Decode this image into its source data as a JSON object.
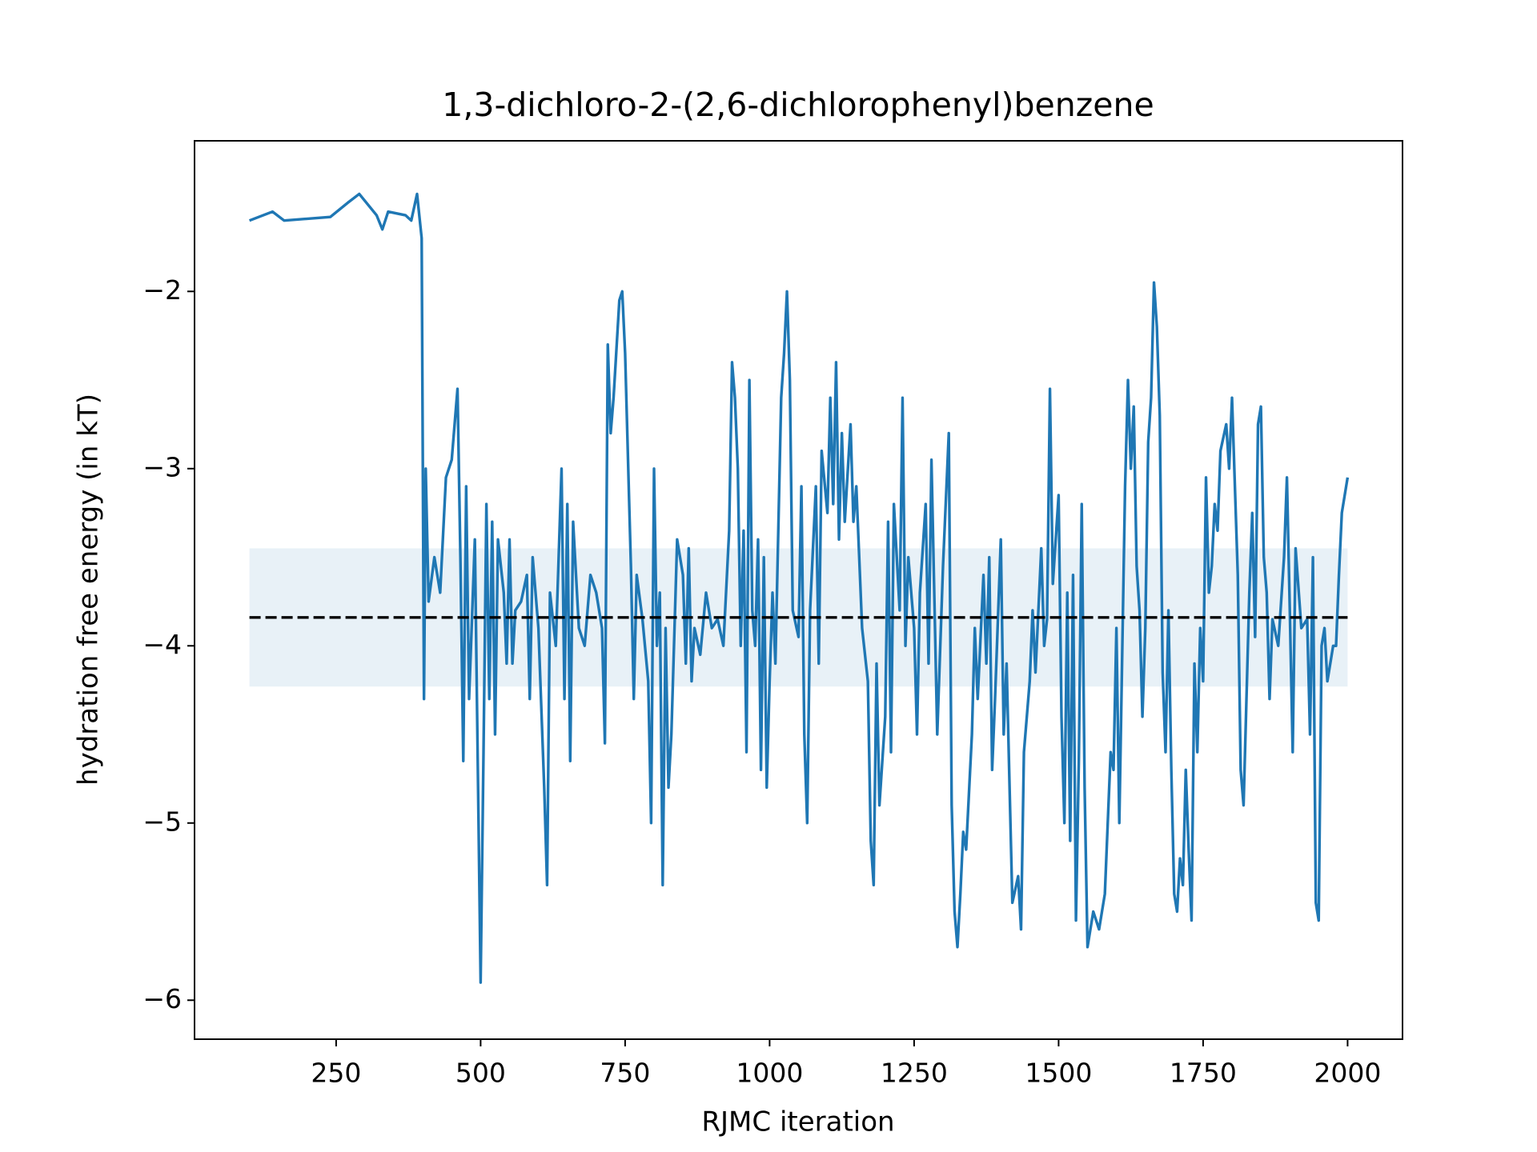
{
  "chart_data": {
    "type": "line",
    "title": "1,3-dichloro-2-(2,6-dichlorophenyl)benzene",
    "xlabel": "RJMC iteration",
    "ylabel": "hydration free energy (in kT)",
    "xlim": [
      5,
      2095
    ],
    "ylim": [
      -6.22,
      -1.15
    ],
    "xticks": [
      250,
      500,
      750,
      1000,
      1250,
      1500,
      1750,
      2000
    ],
    "yticks": [
      {
        "value": -6,
        "label": "−6"
      },
      {
        "value": -5,
        "label": "−5"
      },
      {
        "value": -4,
        "label": "−4"
      },
      {
        "value": -3,
        "label": "−3"
      },
      {
        "value": -2,
        "label": "−2"
      }
    ],
    "reference_line": {
      "value": -3.84,
      "color": "#000000"
    },
    "band": {
      "low": -4.23,
      "high": -3.45,
      "color": "#1f77b4"
    },
    "x": [
      100,
      140,
      160,
      240,
      270,
      290,
      320,
      330,
      340,
      370,
      380,
      390,
      398,
      402,
      405,
      410,
      420,
      430,
      440,
      450,
      460,
      465,
      470,
      475,
      480,
      490,
      500,
      505,
      510,
      515,
      520,
      525,
      530,
      540,
      545,
      550,
      555,
      560,
      570,
      580,
      585,
      590,
      600,
      610,
      615,
      620,
      630,
      640,
      645,
      650,
      655,
      660,
      670,
      680,
      690,
      700,
      710,
      715,
      720,
      725,
      730,
      740,
      745,
      750,
      760,
      765,
      770,
      780,
      790,
      795,
      800,
      805,
      810,
      815,
      820,
      825,
      830,
      840,
      850,
      855,
      860,
      865,
      870,
      880,
      890,
      900,
      910,
      920,
      930,
      935,
      940,
      945,
      950,
      955,
      960,
      965,
      970,
      975,
      980,
      985,
      990,
      995,
      1000,
      1005,
      1010,
      1020,
      1025,
      1030,
      1035,
      1040,
      1050,
      1055,
      1060,
      1065,
      1070,
      1080,
      1085,
      1090,
      1100,
      1105,
      1110,
      1115,
      1120,
      1125,
      1130,
      1140,
      1145,
      1150,
      1160,
      1170,
      1175,
      1180,
      1185,
      1190,
      1200,
      1205,
      1210,
      1215,
      1225,
      1230,
      1235,
      1240,
      1250,
      1255,
      1260,
      1270,
      1275,
      1280,
      1290,
      1300,
      1310,
      1315,
      1320,
      1325,
      1330,
      1335,
      1340,
      1350,
      1355,
      1360,
      1370,
      1375,
      1380,
      1385,
      1390,
      1400,
      1405,
      1410,
      1420,
      1430,
      1435,
      1440,
      1450,
      1455,
      1460,
      1470,
      1475,
      1480,
      1485,
      1490,
      1500,
      1505,
      1510,
      1515,
      1520,
      1525,
      1530,
      1535,
      1540,
      1545,
      1550,
      1560,
      1570,
      1575,
      1580,
      1590,
      1595,
      1600,
      1605,
      1610,
      1615,
      1620,
      1625,
      1630,
      1635,
      1640,
      1645,
      1650,
      1655,
      1660,
      1665,
      1670,
      1675,
      1680,
      1685,
      1690,
      1695,
      1700,
      1705,
      1710,
      1715,
      1720,
      1725,
      1730,
      1735,
      1740,
      1745,
      1750,
      1755,
      1760,
      1765,
      1770,
      1775,
      1780,
      1790,
      1795,
      1800,
      1810,
      1815,
      1820,
      1830,
      1835,
      1840,
      1845,
      1850,
      1855,
      1860,
      1865,
      1870,
      1880,
      1890,
      1895,
      1900,
      1905,
      1910,
      1920,
      1930,
      1935,
      1940,
      1945,
      1950,
      1955,
      1960,
      1965,
      1970,
      1975,
      1980,
      1985,
      1990,
      2000
    ],
    "series": [
      {
        "color": "#1f77b4",
        "values": [
          -1.6,
          -1.55,
          -1.6,
          -1.58,
          -1.5,
          -1.45,
          -1.57,
          -1.65,
          -1.55,
          -1.57,
          -1.6,
          -1.45,
          -1.7,
          -4.3,
          -3.0,
          -3.75,
          -3.5,
          -3.7,
          -3.05,
          -2.95,
          -2.55,
          -3.5,
          -4.65,
          -3.1,
          -4.3,
          -3.4,
          -5.9,
          -4.6,
          -3.2,
          -4.3,
          -3.3,
          -4.5,
          -3.4,
          -3.7,
          -4.1,
          -3.4,
          -4.1,
          -3.8,
          -3.75,
          -3.6,
          -4.3,
          -3.5,
          -3.9,
          -4.8,
          -5.35,
          -3.7,
          -4.0,
          -3.0,
          -4.3,
          -3.2,
          -4.65,
          -3.3,
          -3.9,
          -4.0,
          -3.6,
          -3.7,
          -3.9,
          -4.55,
          -2.3,
          -2.8,
          -2.6,
          -2.05,
          -2.0,
          -2.35,
          -3.55,
          -4.3,
          -3.6,
          -3.85,
          -4.2,
          -5.0,
          -3.0,
          -4.0,
          -3.7,
          -5.35,
          -3.9,
          -4.8,
          -4.5,
          -3.4,
          -3.6,
          -4.1,
          -3.45,
          -4.2,
          -3.9,
          -4.05,
          -3.7,
          -3.9,
          -3.85,
          -4.0,
          -3.35,
          -2.4,
          -2.6,
          -3.0,
          -4.0,
          -3.35,
          -4.6,
          -2.5,
          -3.8,
          -4.0,
          -3.4,
          -4.7,
          -3.5,
          -4.8,
          -4.2,
          -3.7,
          -4.1,
          -2.6,
          -2.35,
          -2.0,
          -2.5,
          -3.8,
          -3.95,
          -3.1,
          -4.5,
          -5.0,
          -3.8,
          -3.1,
          -4.1,
          -2.9,
          -3.25,
          -2.6,
          -3.2,
          -2.4,
          -3.4,
          -2.8,
          -3.3,
          -2.75,
          -3.3,
          -3.1,
          -3.9,
          -4.2,
          -5.1,
          -5.35,
          -4.1,
          -4.9,
          -4.4,
          -3.3,
          -4.6,
          -3.2,
          -3.8,
          -2.6,
          -4.0,
          -3.5,
          -3.9,
          -4.5,
          -3.7,
          -3.2,
          -4.1,
          -2.95,
          -4.5,
          -3.55,
          -2.8,
          -4.9,
          -5.5,
          -5.7,
          -5.4,
          -5.05,
          -5.15,
          -4.5,
          -3.9,
          -4.3,
          -3.6,
          -4.1,
          -3.5,
          -4.7,
          -4.3,
          -3.4,
          -4.5,
          -4.1,
          -5.45,
          -5.3,
          -5.6,
          -4.6,
          -4.2,
          -3.8,
          -4.15,
          -3.45,
          -4.0,
          -3.85,
          -2.55,
          -3.65,
          -3.15,
          -4.4,
          -5.0,
          -3.7,
          -5.1,
          -3.6,
          -5.55,
          -4.65,
          -3.2,
          -4.8,
          -5.7,
          -5.5,
          -5.6,
          -5.5,
          -5.4,
          -4.6,
          -4.7,
          -3.9,
          -5.0,
          -4.05,
          -3.1,
          -2.5,
          -3.0,
          -2.65,
          -3.55,
          -3.8,
          -4.4,
          -3.9,
          -2.85,
          -2.6,
          -1.95,
          -2.2,
          -2.7,
          -4.15,
          -4.6,
          -3.8,
          -4.7,
          -5.4,
          -5.5,
          -5.2,
          -5.35,
          -4.7,
          -5.15,
          -5.55,
          -4.1,
          -4.6,
          -3.9,
          -4.2,
          -3.05,
          -3.7,
          -3.55,
          -3.2,
          -3.35,
          -2.9,
          -2.75,
          -3.0,
          -2.6,
          -3.6,
          -4.7,
          -4.9,
          -3.7,
          -3.25,
          -3.95,
          -2.75,
          -2.65,
          -3.5,
          -3.7,
          -4.3,
          -3.85,
          -4.0,
          -3.5,
          -3.05,
          -3.8,
          -4.6,
          -3.45,
          -3.9,
          -3.85,
          -4.5,
          -3.5,
          -5.45,
          -5.55,
          -4.0,
          -3.9,
          -4.2,
          -4.1,
          -4.0,
          -4.0,
          -3.6,
          -3.25,
          -3.05
        ]
      }
    ]
  }
}
